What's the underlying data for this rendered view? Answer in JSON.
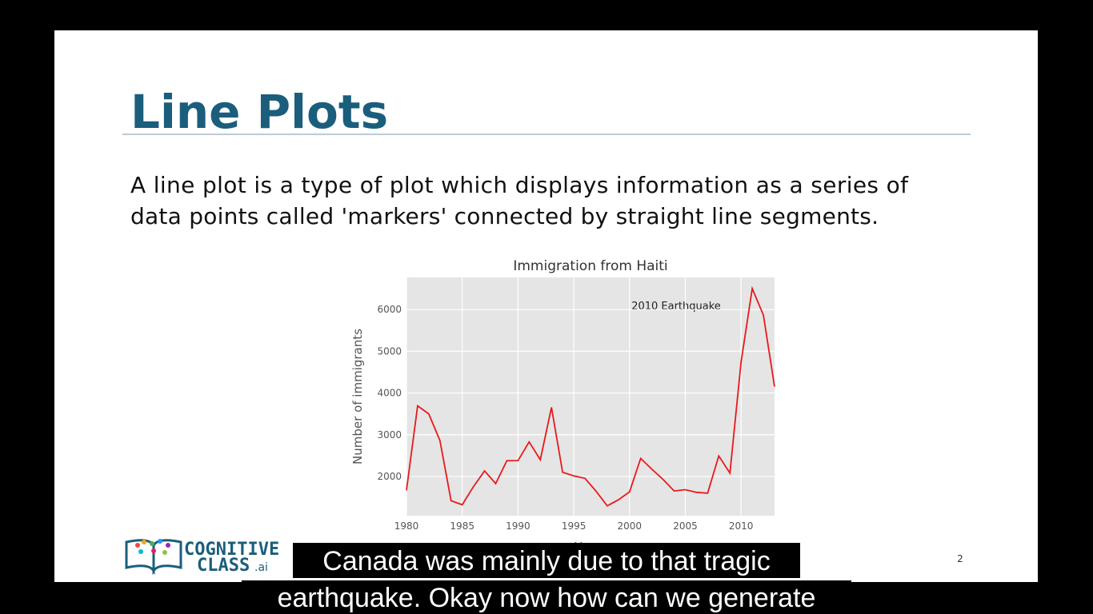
{
  "slide": {
    "title": "Line Plots",
    "text": [
      "A line plot is a type of plot which displays information as a series of",
      "data points called 'markers' connected by straight line segments."
    ],
    "logo": [
      "COGNITIVE",
      "CLASS",
      ".ai"
    ],
    "page_number": "2"
  },
  "chart_data": {
    "type": "line",
    "title": "Immigration from Haiti",
    "x_label": "Years",
    "y_label": "Number of immigrants",
    "annotation": "2010 Earthquake",
    "x": [
      1980,
      1981,
      1982,
      1983,
      1984,
      1985,
      1986,
      1987,
      1988,
      1989,
      1990,
      1991,
      1992,
      1993,
      1994,
      1995,
      1996,
      1997,
      1998,
      1999,
      2000,
      2001,
      2002,
      2003,
      2004,
      2005,
      2006,
      2007,
      2008,
      2009,
      2010,
      2011,
      2012,
      2013
    ],
    "series": [
      {
        "name": "Haiti",
        "color": "#e8191b",
        "values": [
          1666,
          3692,
          3498,
          2860,
          1418,
          1321,
          1753,
          2132,
          1829,
          2377,
          2379,
          2829,
          2399,
          3655,
          2100,
          2014,
          1955,
          1645,
          1295,
          1439,
          1631,
          2433,
          2174,
          1930,
          1652,
          1682,
          1619,
          1598,
          2491,
          2080,
          4744,
          6503,
          5868,
          4152
        ]
      }
    ],
    "xlim": [
      1980,
      2013
    ],
    "xticks": [
      1980,
      1985,
      1990,
      1995,
      2000,
      2005,
      2010
    ],
    "ylim": [
      1060,
      6770
    ],
    "yticks": [
      2000,
      3000,
      4000,
      5000,
      6000
    ],
    "grid": true
  },
  "subtitles": [
    "Canada was mainly due to that tragic",
    "earthquake. Okay now how can we generate"
  ]
}
